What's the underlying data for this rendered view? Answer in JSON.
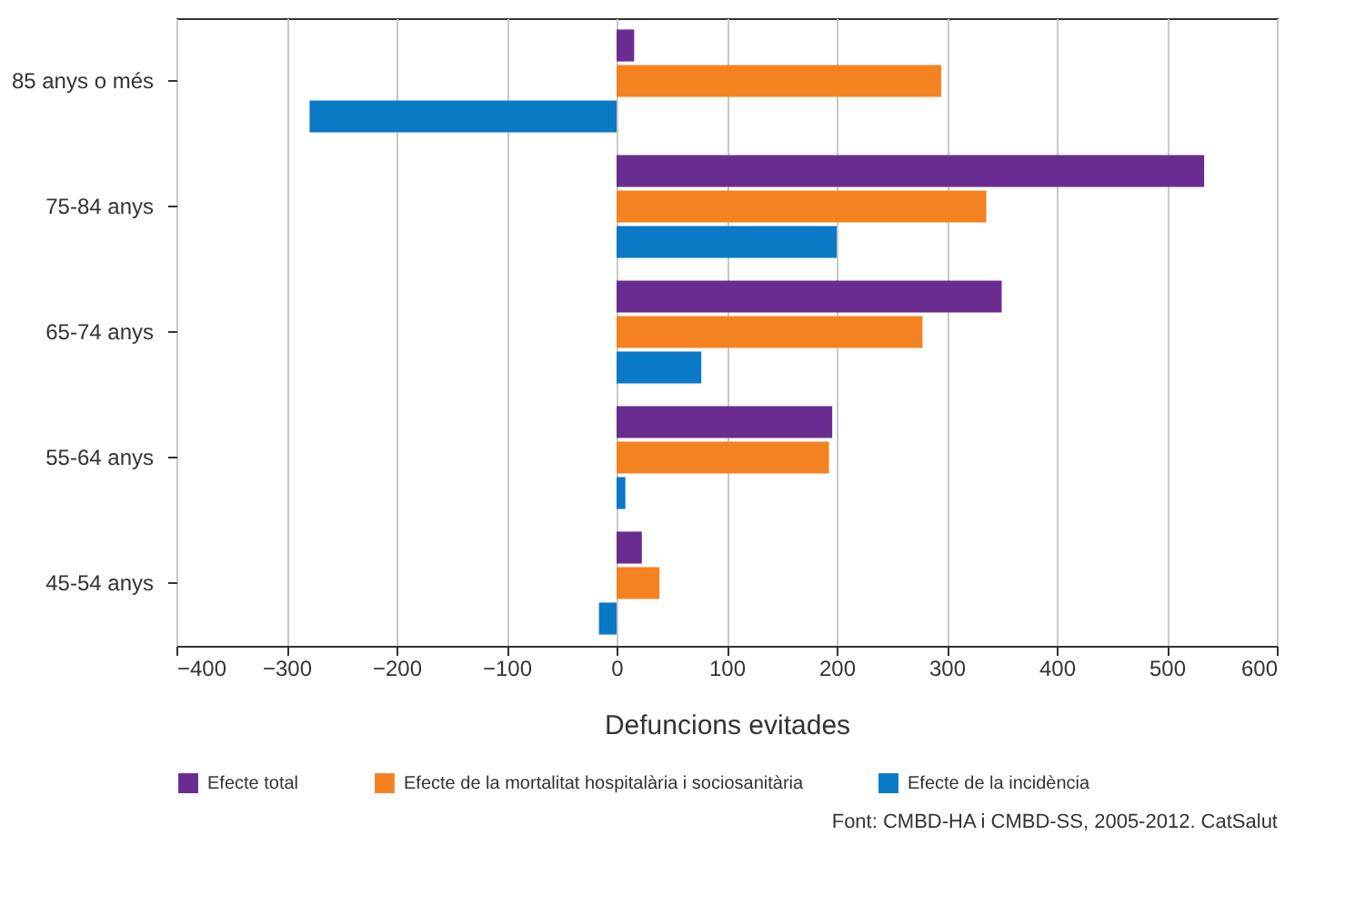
{
  "chart_data": {
    "type": "bar",
    "orientation": "horizontal",
    "xlabel": "Defuncions evitades",
    "categories": [
      "85 anys o més",
      "75-84 anys",
      "65-74 anys",
      "55-64 anys",
      "45-54 anys"
    ],
    "series": [
      {
        "name": "Efecte total",
        "color": "#6a2c91",
        "values": [
          16,
          534,
          350,
          196,
          23
        ]
      },
      {
        "name": "Efecte de la mortalitat hospitalària i sociosanitària",
        "color": "#f58220",
        "values": [
          295,
          336,
          278,
          193,
          39
        ]
      },
      {
        "name": "Efecte de la incidència",
        "color": "#0a79c6",
        "values": [
          -279,
          200,
          77,
          8,
          -16
        ]
      }
    ],
    "xlim": [
      -400,
      600
    ],
    "xticks": [
      -400,
      -300,
      -200,
      -100,
      0,
      100,
      200,
      300,
      400,
      500,
      600
    ],
    "grid": "x",
    "legend": "bottom",
    "annotations": [
      "Font: CMBD-HA i CMBD-SS, 2005-2012. CatSalut"
    ]
  }
}
